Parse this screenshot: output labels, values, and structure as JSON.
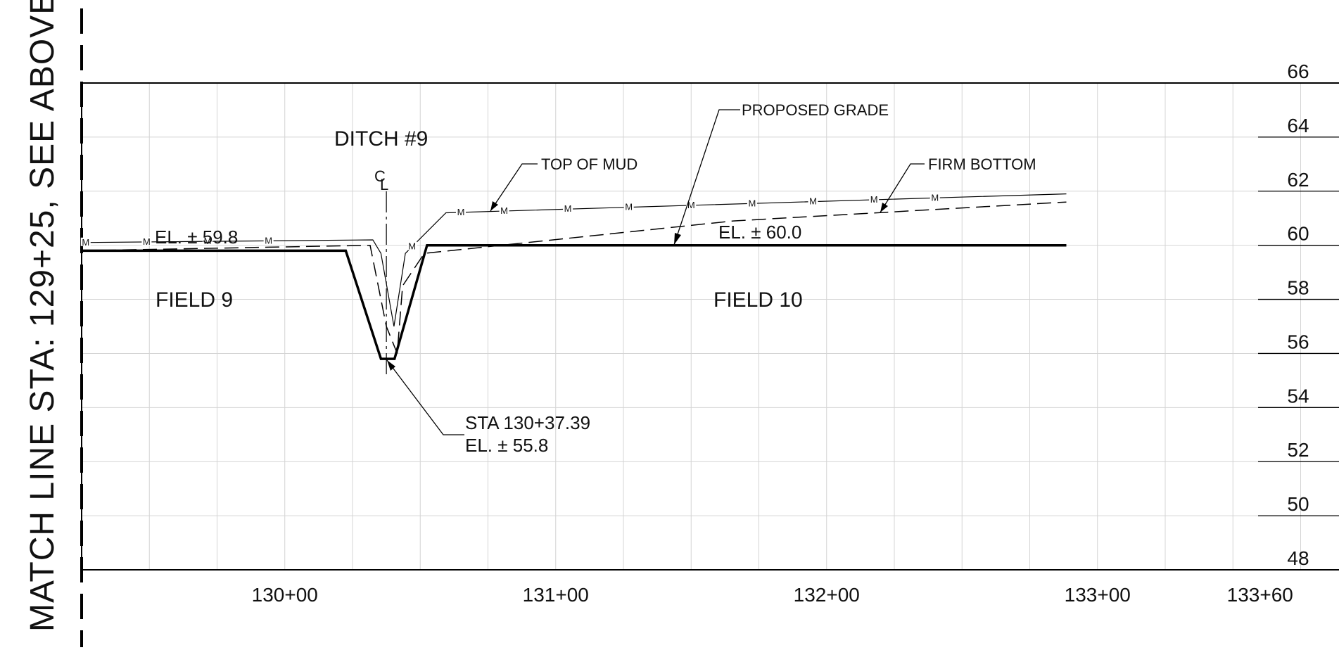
{
  "match_line": {
    "label": "MATCH LINE STA: 129+25, SEE ABOVE"
  },
  "ditch_label": "DITCH #9",
  "centerline_symbol": {
    "c": "C",
    "l": "L"
  },
  "field_labels": {
    "left": "FIELD 9",
    "right": "FIELD 10"
  },
  "callouts": {
    "top_of_mud": "TOP OF MUD",
    "proposed_grade": "PROPOSED GRADE",
    "firm_bottom": "FIRM BOTTOM",
    "left_elevation": "EL. ± 59.8",
    "right_elevation": "EL. ± 60.0",
    "station_line1": "STA 130+37.39",
    "station_line2": "EL. ± 55.8"
  },
  "mud_marker": "M",
  "chart_data": {
    "type": "line",
    "x_tick_labels": [
      "130+00",
      "131+00",
      "132+00",
      "133+00",
      "133+60"
    ],
    "y_tick_labels": [
      "66",
      "64",
      "62",
      "60",
      "58",
      "56",
      "54",
      "52",
      "50",
      "48"
    ],
    "series": [
      {
        "key": "proposed_grade",
        "points": [
          [
            0,
            59.8
          ],
          [
            97.5,
            59.8
          ],
          [
            110.5,
            55.8
          ],
          [
            115.5,
            55.8
          ],
          [
            127.5,
            60.0
          ],
          [
            363.5,
            60.0
          ]
        ]
      },
      {
        "key": "top_of_mud",
        "points": [
          [
            0,
            60.1
          ],
          [
            107.5,
            60.2
          ],
          [
            110.5,
            59.7
          ],
          [
            115.3,
            57.0
          ],
          [
            119.5,
            59.7
          ],
          [
            134.5,
            61.2
          ],
          [
            363.5,
            61.9
          ]
        ]
      },
      {
        "key": "firm_bottom",
        "points": [
          [
            0,
            59.8
          ],
          [
            106.5,
            60.0
          ],
          [
            112.5,
            57.0
          ],
          [
            116.5,
            56.0
          ],
          [
            118.5,
            58.5
          ],
          [
            126.5,
            59.7
          ],
          [
            240.5,
            60.9
          ],
          [
            363.5,
            61.6
          ]
        ]
      }
    ],
    "centerline_x": 112.5
  }
}
